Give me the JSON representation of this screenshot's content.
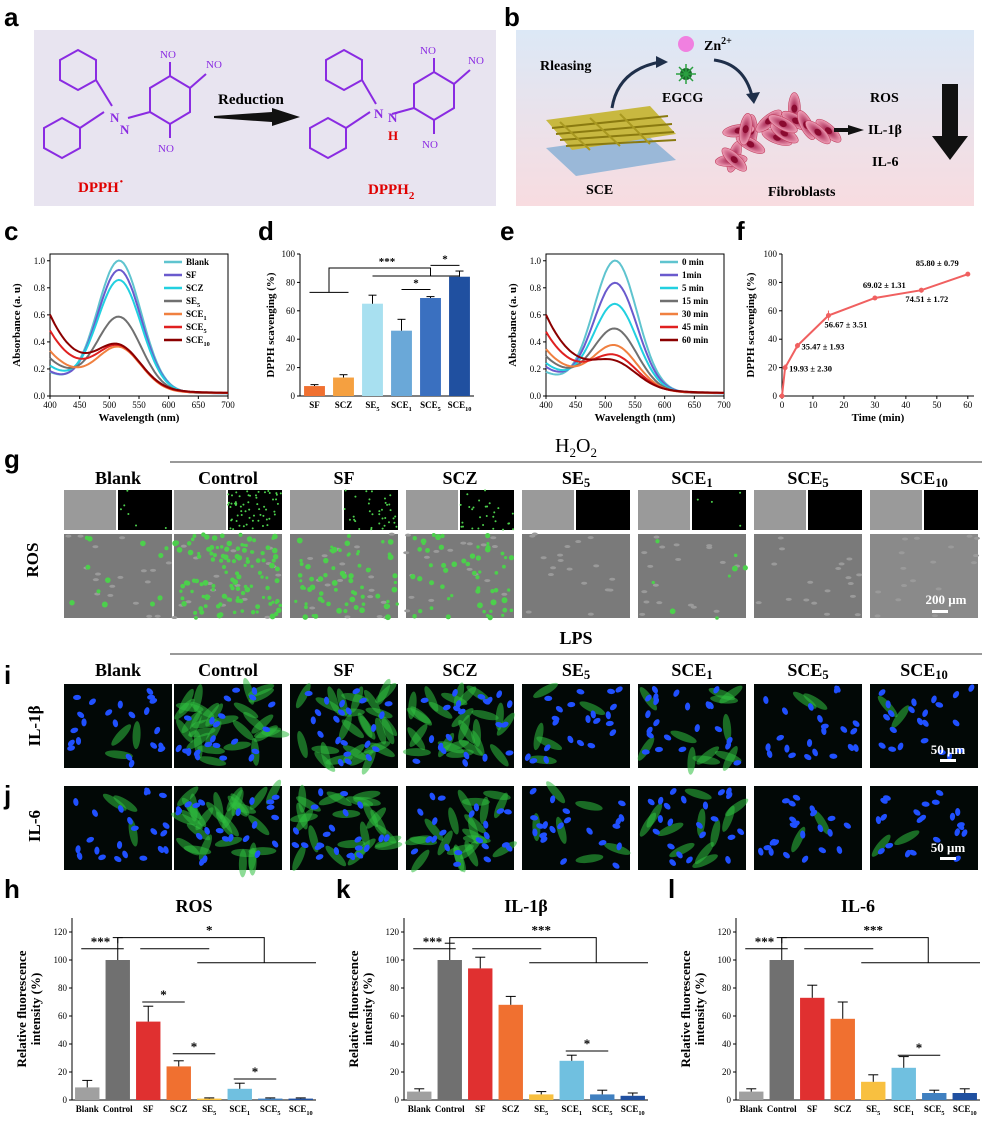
{
  "panels": {
    "a": "a",
    "b": "b",
    "c": "c",
    "d": "d",
    "e": "e",
    "f": "f",
    "g": "g",
    "i": "i",
    "j": "j",
    "h": "h",
    "k": "k",
    "l": "l"
  },
  "panel_a": {
    "arrow_label": "Reduction",
    "left_label": "DPPH",
    "left_dot": "·",
    "right_label": "DPPH",
    "right_sub": "2",
    "N": "N",
    "H": "H",
    "nitro": "NO"
  },
  "panel_b": {
    "releasing": "Rleasing",
    "zn": "Zn",
    "zn_sup": "2+",
    "egcg": "EGCG",
    "sce": "SCE",
    "fibro": "Fibroblasts",
    "ros": "ROS",
    "il1b": "IL-1β",
    "il6": "IL-6"
  },
  "section_g": {
    "condition": "H",
    "condition_sub1": "2",
    "condition_mid": "O",
    "condition_sub2": "2",
    "row_label": "ROS",
    "scale": "200 μm"
  },
  "section_i": {
    "condition": "LPS",
    "row_label_i": "IL-1β",
    "row_label_j": "IL-6",
    "scale": "50 μm"
  },
  "groups": [
    {
      "main": "Blank",
      "sub": ""
    },
    {
      "main": "Control",
      "sub": ""
    },
    {
      "main": "SF",
      "sub": ""
    },
    {
      "main": "SCZ",
      "sub": ""
    },
    {
      "main": "SE",
      "sub": "5"
    },
    {
      "main": "SCE",
      "sub": "1"
    },
    {
      "main": "SCE",
      "sub": "5"
    },
    {
      "main": "SCE",
      "sub": "10"
    }
  ],
  "colors": {
    "bg_a": "#e8e4f0",
    "bg_b_top": "#dce8f6",
    "bg_b_bot": "#f8dce0",
    "purple": "#8a2be2",
    "red": "#e00000",
    "green": "#3cd03c",
    "blue": "#1f50ff"
  },
  "chart_data": [
    {
      "id": "c",
      "type": "line",
      "xlabel": "Wavelength (nm)",
      "ylabel": "Absorbance (a. u)",
      "xlim": [
        400,
        700
      ],
      "ylim": [
        0,
        1.05
      ],
      "xticks": [
        400,
        450,
        500,
        550,
        600,
        650,
        700
      ],
      "yticks": [
        0.0,
        0.2,
        0.4,
        0.6,
        0.8,
        1.0
      ],
      "legend": "top-right",
      "series": [
        {
          "name": "Blank",
          "sub": "",
          "color": "#5fc4cf",
          "peak": 0.96,
          "bl": 0.14,
          "sp": 0.6
        },
        {
          "name": "SF",
          "sub": "",
          "color": "#6a5acd",
          "peak": 0.89,
          "bl": 0.15,
          "sp": 0.58
        },
        {
          "name": "SCZ",
          "sub": "",
          "color": "#22d0e0",
          "peak": 0.81,
          "bl": 0.2,
          "sp": 0.55
        },
        {
          "name": "SE",
          "sub": "5",
          "color": "#707070",
          "peak": 0.53,
          "bl": 0.3,
          "sp": 0.47
        },
        {
          "name": "SCE",
          "sub": "1",
          "color": "#f08040",
          "peak": 0.3,
          "bl": 0.4,
          "sp": 0.43
        },
        {
          "name": "SCE",
          "sub": "5",
          "color": "#e02020",
          "peak": 0.29,
          "bl": 0.48,
          "sp": 0.53
        },
        {
          "name": "SCE",
          "sub": "10",
          "color": "#8b0000",
          "peak": 0.28,
          "bl": 0.56,
          "sp": 0.57
        }
      ]
    },
    {
      "id": "d",
      "type": "bar",
      "ylabel": "DPPH scavenging (%)",
      "ylim": [
        0,
        100
      ],
      "yticks": [
        0,
        20,
        40,
        60,
        80,
        100
      ],
      "categories": [
        "SF",
        "SCZ",
        "SE",
        "SCE",
        "SCE",
        "SCE"
      ],
      "category_subs": [
        "",
        "",
        "5",
        "1",
        "5",
        "10"
      ],
      "values": [
        7,
        13,
        65,
        46,
        69,
        84
      ],
      "errors": [
        1,
        2,
        6,
        8,
        1,
        4
      ],
      "colors": [
        "#f07030",
        "#f5a040",
        "#a8e0f0",
        "#6aa8d8",
        "#3a70c0",
        "#2050a0"
      ],
      "sig": [
        {
          "label": "***",
          "from": 0,
          "to": 4
        },
        {
          "label": "*",
          "from": 3,
          "to": 4
        },
        {
          "label": "*",
          "from": 4,
          "to": 5
        }
      ]
    },
    {
      "id": "e",
      "type": "line",
      "xlabel": "Wavelength (nm)",
      "ylabel": "Absorbance (a. u)",
      "xlim": [
        400,
        700
      ],
      "ylim": [
        0,
        1.05
      ],
      "xticks": [
        400,
        450,
        500,
        550,
        600,
        650,
        700
      ],
      "yticks": [
        0.0,
        0.2,
        0.4,
        0.6,
        0.8,
        1.0
      ],
      "legend": "top-right",
      "series": [
        {
          "name": "0 min",
          "sub": "",
          "color": "#5fc4cf",
          "peak": 0.96,
          "bl": 0.14,
          "sp": 0.6
        },
        {
          "name": "1min",
          "sub": "",
          "color": "#6a5acd",
          "peak": 0.79,
          "bl": 0.18,
          "sp": 0.58
        },
        {
          "name": "5 min",
          "sub": "",
          "color": "#22d0e0",
          "peak": 0.63,
          "bl": 0.22,
          "sp": 0.55
        },
        {
          "name": "15 min",
          "sub": "",
          "color": "#707070",
          "peak": 0.44,
          "bl": 0.3,
          "sp": 0.5
        },
        {
          "name": "30 min",
          "sub": "",
          "color": "#f08040",
          "peak": 0.31,
          "bl": 0.38,
          "sp": 0.47
        },
        {
          "name": "45 min",
          "sub": "",
          "color": "#e02020",
          "peak": 0.22,
          "bl": 0.48,
          "sp": 0.52
        },
        {
          "name": "60 min",
          "sub": "",
          "color": "#8b0000",
          "peak": 0.16,
          "bl": 0.56,
          "sp": 0.57
        }
      ]
    },
    {
      "id": "f",
      "type": "line",
      "xlabel": "Time (min)",
      "ylabel": "DPPH scavenging (%)",
      "xlim": [
        0,
        62
      ],
      "ylim": [
        0,
        100
      ],
      "xticks": [
        0,
        10,
        20,
        30,
        40,
        50,
        60
      ],
      "yticks": [
        0,
        20,
        40,
        60,
        80,
        100
      ],
      "x": [
        0,
        1,
        5,
        15,
        30,
        45,
        60
      ],
      "y": [
        0,
        19.93,
        35.47,
        56.67,
        69.02,
        74.51,
        85.8
      ],
      "errors": [
        0,
        2.3,
        1.93,
        3.51,
        1.31,
        1.72,
        0.79
      ],
      "labels": [
        "",
        "19.93 ± 2.30",
        "35.47 ± 1.93",
        "56.67 ± 3.51",
        "69.02 ± 1.31",
        "74.51 ± 1.72",
        "85.80 ± 0.79"
      ],
      "color": "#f06060"
    },
    {
      "id": "h",
      "type": "bar",
      "title": "ROS",
      "ylabel": "Relative fluorescence intensity (%)",
      "ylim": [
        0,
        130
      ],
      "yticks": [
        0,
        20,
        40,
        60,
        80,
        100,
        120
      ],
      "categories": [
        "Blank",
        "Control",
        "SF",
        "SCZ",
        "SE",
        "SCE",
        "SCE",
        "SCE"
      ],
      "category_subs": [
        "",
        "",
        "",
        "",
        "5",
        "1",
        "5",
        "10"
      ],
      "values": [
        9,
        100,
        56,
        24,
        1,
        8,
        1,
        1
      ],
      "errors": [
        5,
        16,
        11,
        4,
        0.5,
        4,
        0.5,
        0.5
      ],
      "colors": [
        "#a0a0a0",
        "#707070",
        "#e03030",
        "#f07030",
        "#f8c040",
        "#70c0e0",
        "#4080c0",
        "#2050a0"
      ],
      "sig": [
        "***",
        "*",
        "*",
        "*",
        "*"
      ]
    },
    {
      "id": "k",
      "type": "bar",
      "title": "IL-1β",
      "ylabel": "Relative fluorescence intensity (%)",
      "ylim": [
        0,
        130
      ],
      "yticks": [
        0,
        20,
        40,
        60,
        80,
        100,
        120
      ],
      "categories": [
        "Blank",
        "Control",
        "SF",
        "SCZ",
        "SE",
        "SCE",
        "SCE",
        "SCE"
      ],
      "category_subs": [
        "",
        "",
        "",
        "",
        "5",
        "1",
        "5",
        "10"
      ],
      "values": [
        6,
        100,
        94,
        68,
        4,
        28,
        4,
        3
      ],
      "errors": [
        2,
        12,
        8,
        6,
        2,
        4,
        3,
        2
      ],
      "colors": [
        "#a0a0a0",
        "#707070",
        "#e03030",
        "#f07030",
        "#f8c040",
        "#70c0e0",
        "#4080c0",
        "#2050a0"
      ],
      "sig": [
        "***",
        "***",
        "*"
      ]
    },
    {
      "id": "l",
      "type": "bar",
      "title": "IL-6",
      "ylabel": "Relative fluorescence intensity (%)",
      "ylim": [
        0,
        130
      ],
      "yticks": [
        0,
        20,
        40,
        60,
        80,
        100,
        120
      ],
      "categories": [
        "Blank",
        "Control",
        "SF",
        "SCZ",
        "SE",
        "SCE",
        "SCE",
        "SCE"
      ],
      "category_subs": [
        "",
        "",
        "",
        "",
        "5",
        "1",
        "5",
        "10"
      ],
      "values": [
        6,
        100,
        73,
        58,
        13,
        23,
        5,
        5
      ],
      "errors": [
        2,
        16,
        9,
        12,
        5,
        8,
        2,
        3
      ],
      "colors": [
        "#a0a0a0",
        "#707070",
        "#e03030",
        "#f07030",
        "#f8c040",
        "#70c0e0",
        "#4080c0",
        "#2050a0"
      ],
      "sig": [
        "***",
        "***",
        "*"
      ]
    }
  ]
}
